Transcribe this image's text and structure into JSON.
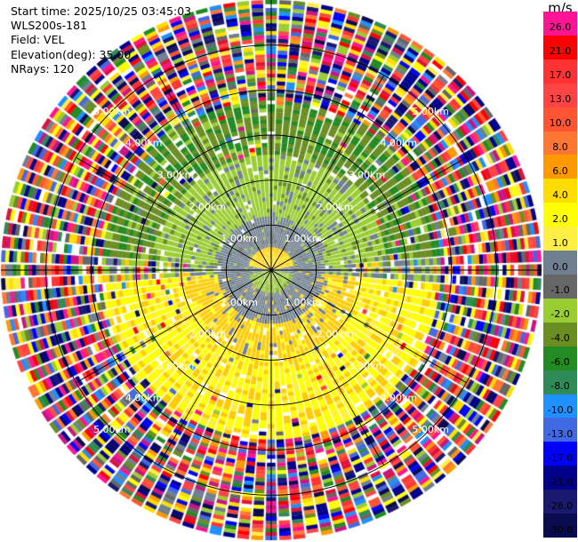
{
  "header": {
    "start_time": "Start time: 2025/10/25 03:45:03",
    "instrument": "WLS200s-181",
    "field": "Field: VEL",
    "elevation": "Elevation(deg): 35.00",
    "nrays": "NRays: 120"
  },
  "colorbar": {
    "unit": "m/s",
    "labels": [
      "26.0",
      "21.0",
      "17.0",
      "13.0",
      "10.0",
      "8.0",
      "6.0",
      "4.0",
      "2.0",
      "1.0",
      "0.0",
      "-1.0",
      "-2.0",
      "-4.0",
      "-6.0",
      "-8.0",
      "-10.0",
      "-13.0",
      "-17.0",
      "-21.0",
      "-26.0",
      "-30.0"
    ],
    "colors": [
      "#ff1493",
      "#ff0000",
      "#ff3333",
      "#ff4444",
      "#ff5533",
      "#ff7733",
      "#ff9900",
      "#ffdd00",
      "#ffff00",
      "#ffee44",
      "#708090",
      "#666666",
      "#9acd32",
      "#6b8e23",
      "#228b22",
      "#2e8b57",
      "#1e90ff",
      "#4169e1",
      "#0000ff",
      "#00008b",
      "#191970",
      "#0a0a50"
    ]
  },
  "chart_data": {
    "type": "ppi",
    "field": "VEL",
    "units": "m/s",
    "elevation_deg": 35.0,
    "n_rays": 120,
    "range_rings_km": [
      1.0,
      2.0,
      3.0,
      4.0,
      5.0
    ],
    "ring_labels": [
      "1.00km",
      "2.00km",
      "3.00km",
      "4.00km",
      "5.00km"
    ],
    "max_range_km": 6.0,
    "spokes_deg": [
      0,
      30,
      60,
      90,
      120,
      150,
      180,
      210,
      240,
      270,
      300,
      330
    ],
    "velocity_regions": [
      {
        "range_km": [
          0.0,
          0.5
        ],
        "description": "near-center mixed",
        "north_value": 3.0,
        "south_value": -1.5
      },
      {
        "range_km": [
          0.5,
          1.2
        ],
        "value": 0.0
      },
      {
        "range_km": [
          1.2,
          2.6
        ],
        "north_value": -1.5,
        "south_value": 3.0
      },
      {
        "range_km": [
          2.6,
          3.8
        ],
        "north_value": -5.0,
        "south_value": 3.0
      },
      {
        "range_km": [
          3.8,
          6.0
        ],
        "description": "noise, all classes"
      }
    ]
  }
}
